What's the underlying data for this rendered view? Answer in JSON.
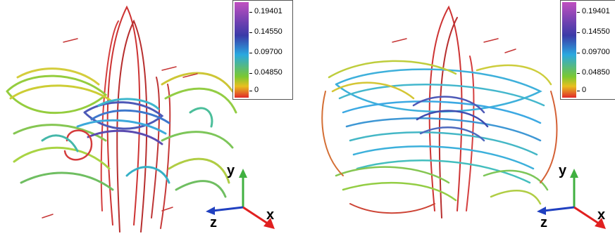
{
  "panels": [
    {
      "name": "left",
      "colorbar": {
        "labels": [
          "0.19401",
          "0.14550",
          "0.09700",
          "0.04850",
          "0"
        ],
        "colors": [
          "#c050c0",
          "#3a3aa8",
          "#2aa8e0",
          "#7ac832",
          "#e02a2a"
        ]
      },
      "axes": {
        "x": "x",
        "y": "y",
        "z": "z"
      }
    },
    {
      "name": "right",
      "colorbar": {
        "labels": [
          "0.19401",
          "0.14550",
          "0.09700",
          "0.04850",
          "0"
        ],
        "colors": [
          "#c050c0",
          "#3a3aa8",
          "#2aa8e0",
          "#7ac832",
          "#e02a2a"
        ]
      },
      "axes": {
        "x": "x",
        "y": "y",
        "z": "z"
      }
    }
  ],
  "axis_colors": {
    "x": "#e02020",
    "y": "#40b040",
    "z": "#2040c0"
  }
}
